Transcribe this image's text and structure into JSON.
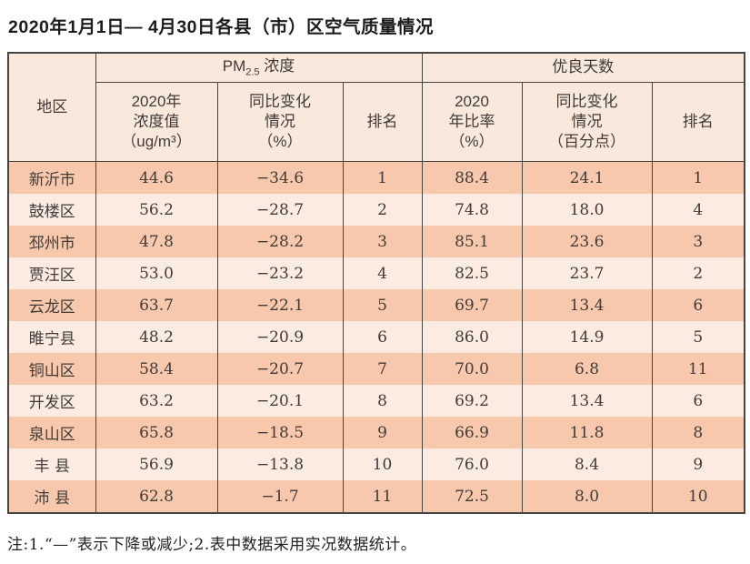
{
  "note": "注:1.“—”表示下降或减少;2.表中数据采用实况数据统计。",
  "colors": {
    "row_odd": "#f7c8ac",
    "row_even": "#fcebe1",
    "header_bg": "#f9e8dc",
    "border": "#454545"
  },
  "header": {
    "region": "地区",
    "pm25_group": {
      "prefix": "PM",
      "sub": "2.5",
      "suffix": " 浓度"
    },
    "good_days_group": "优良天数",
    "sub": [
      "2020年\n浓度值\n（ug/m³）",
      "同比变化\n情况\n（%）",
      "排名",
      "2020\n年比率\n（%）",
      "同比变化\n情况\n（百分点）",
      "排名"
    ]
  },
  "chart_data": {
    "type": "table",
    "title": "2020年1月1日— 4月30日各县（市）区空气质量情况",
    "column_groups": [
      {
        "label": "地区",
        "span": 1
      },
      {
        "label": "PM2.5 浓度",
        "span": 3
      },
      {
        "label": "优良天数",
        "span": 3
      }
    ],
    "columns": [
      "地区",
      "2020年浓度值（ug/m³）",
      "同比变化情况（%）",
      "排名",
      "2020年比率（%）",
      "同比变化情况（百分点）",
      "排名"
    ],
    "rows": [
      [
        "新沂市",
        "44.6",
        "−34.6",
        "1",
        "88.4",
        "24.1",
        "1"
      ],
      [
        "鼓楼区",
        "56.2",
        "−28.7",
        "2",
        "74.8",
        "18.0",
        "4"
      ],
      [
        "邳州市",
        "47.8",
        "−28.2",
        "3",
        "85.1",
        "23.6",
        "3"
      ],
      [
        "贾汪区",
        "53.0",
        "−23.2",
        "4",
        "82.5",
        "23.7",
        "2"
      ],
      [
        "云龙区",
        "63.7",
        "−22.1",
        "5",
        "69.7",
        "13.4",
        "6"
      ],
      [
        "睢宁县",
        "48.2",
        "−20.9",
        "6",
        "86.0",
        "14.9",
        "5"
      ],
      [
        "铜山区",
        "58.4",
        "−20.7",
        "7",
        "70.0",
        "6.8",
        "11"
      ],
      [
        "开发区",
        "63.2",
        "−20.1",
        "8",
        "69.2",
        "13.4",
        "6"
      ],
      [
        "泉山区",
        "65.8",
        "−18.5",
        "9",
        "66.9",
        "11.8",
        "8"
      ],
      [
        "丰 县",
        "56.9",
        "−13.8",
        "10",
        "76.0",
        "8.4",
        "9"
      ],
      [
        "沛 县",
        "62.8",
        "−1.7",
        "11",
        "72.5",
        "8.0",
        "10"
      ]
    ],
    "note": "注:1.“—”表示下降或减少;2.表中数据采用实况数据统计。"
  }
}
